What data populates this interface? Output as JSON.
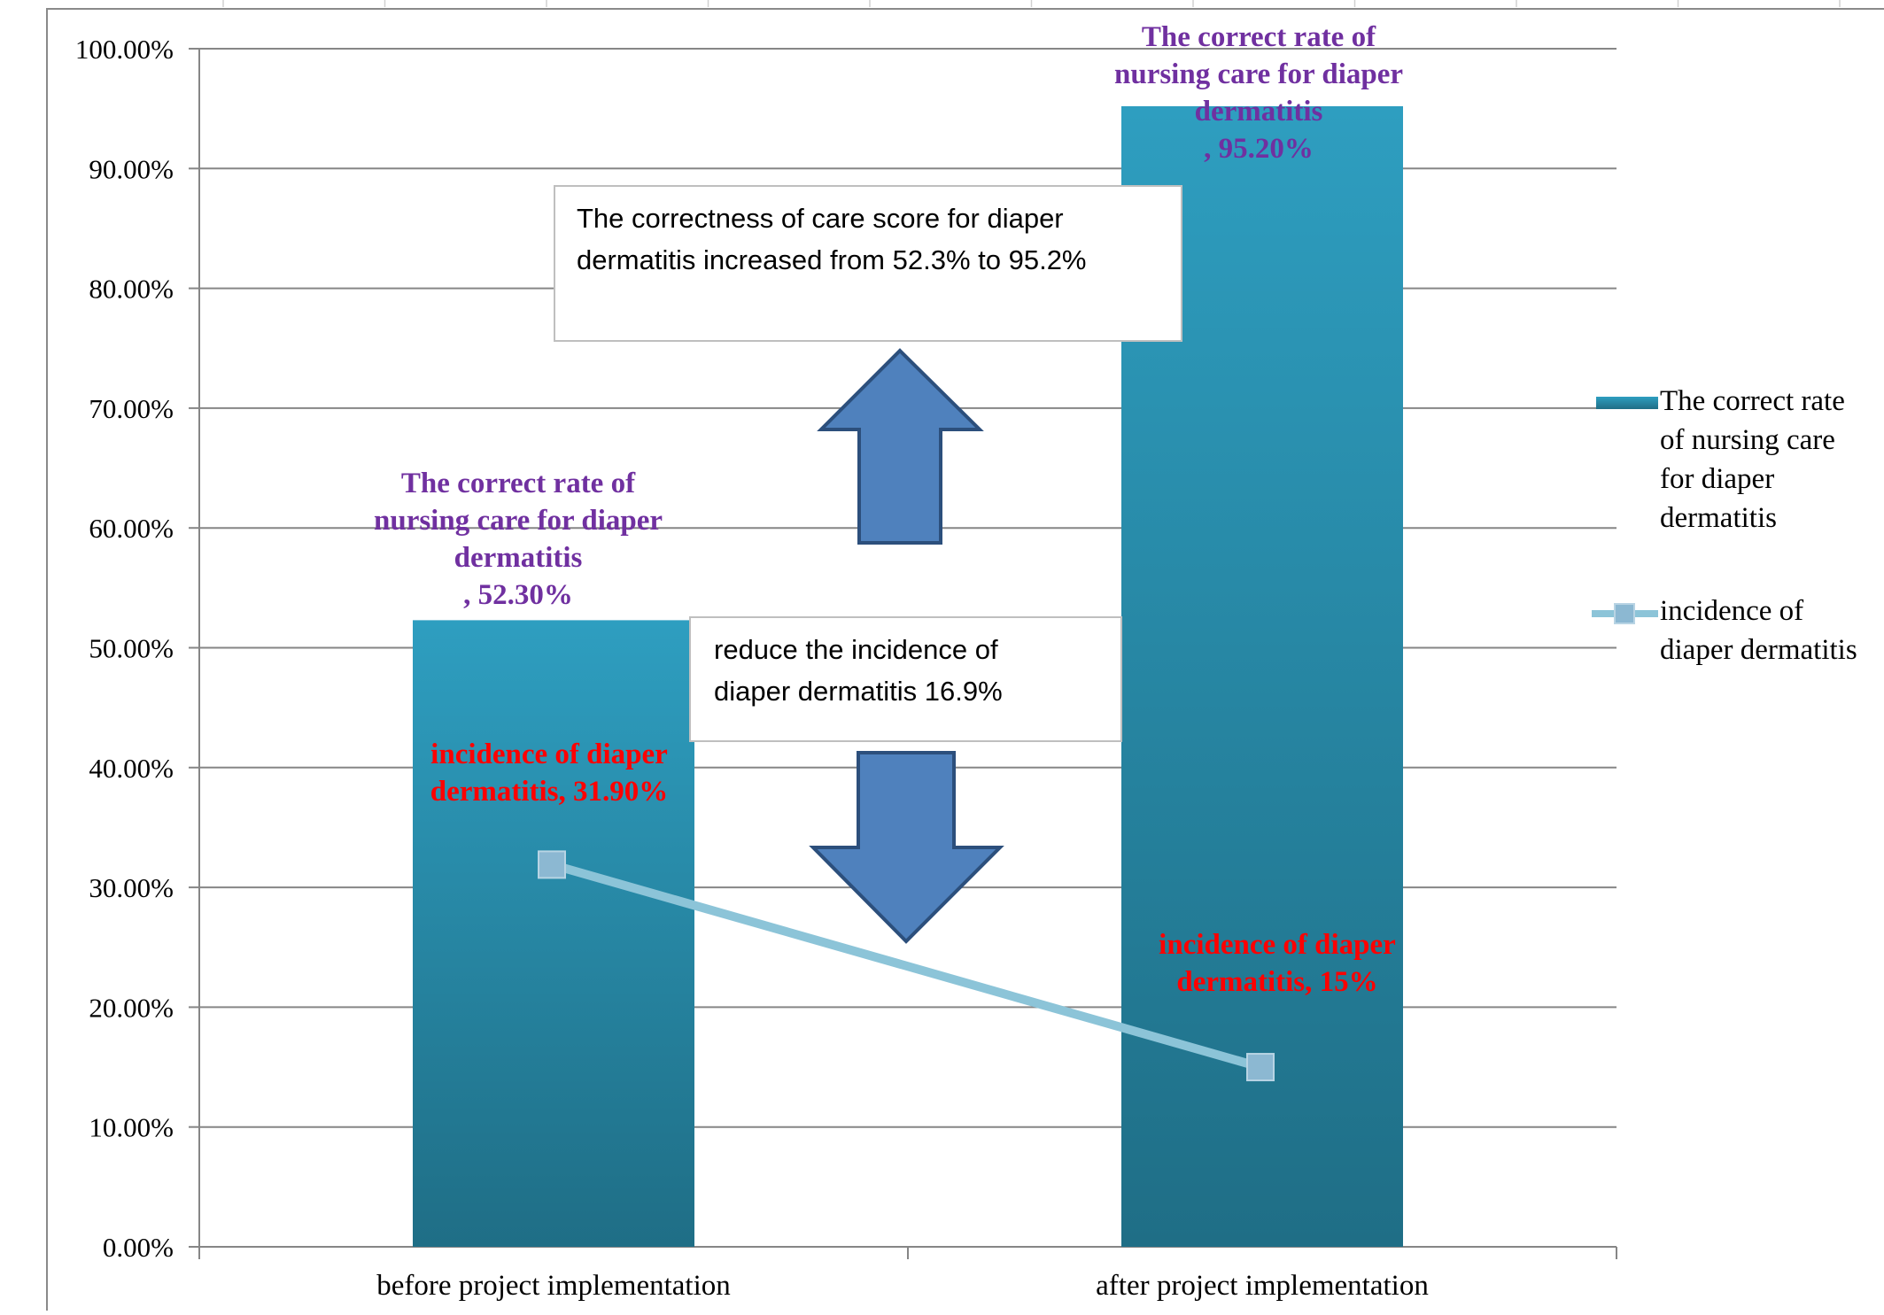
{
  "colors": {
    "bar_top": "#2e9ec0",
    "bar_bottom": "#1f6e86",
    "line": "#8cc4d8",
    "marker": "#8cb8d2",
    "bar_label": "#7030a0",
    "line_label": "#ff0000",
    "arrow_fill": "#4f81bd",
    "arrow_stroke": "#2c4f7c",
    "grid": "#868686"
  },
  "chart_data": {
    "type": "bar",
    "categories": [
      "before project implementation",
      "after project implementation"
    ],
    "ylim": [
      0,
      100
    ],
    "y_ticks": [
      "0.00%",
      "10.00%",
      "20.00%",
      "30.00%",
      "40.00%",
      "50.00%",
      "60.00%",
      "70.00%",
      "80.00%",
      "90.00%",
      "100.00%"
    ],
    "grid": true,
    "legend_position": "right",
    "series": [
      {
        "name": "The correct rate of nursing care for diaper dermatitis",
        "kind": "bar",
        "values": [
          52.3,
          95.2
        ],
        "labels": [
          [
            "The correct rate of",
            "nursing care for diaper",
            "dermatitis",
            ", 52.30%"
          ],
          [
            "The correct rate of",
            "nursing care for diaper",
            "dermatitis",
            ", 95.20%"
          ]
        ],
        "legend_lines": [
          "The correct rate",
          "of nursing care",
          "for diaper",
          "dermatitis"
        ]
      },
      {
        "name": "incidence of diaper dermatitis",
        "kind": "line",
        "values": [
          31.9,
          15
        ],
        "labels": [
          [
            "incidence of diaper",
            "dermatitis, 31.90%"
          ],
          [
            "incidence of diaper",
            "dermatitis, 15%"
          ]
        ],
        "legend_lines": [
          "incidence of",
          "diaper dermatitis"
        ]
      }
    ],
    "annotations": [
      {
        "lines": [
          "The correctness of care score  for diaper",
          "dermatitis increased from 52.3% to 95.2%"
        ],
        "arrow": "up"
      },
      {
        "lines": [
          "reduce the incidence of",
          "diaper dermatitis 16.9%"
        ],
        "arrow": "down"
      }
    ]
  }
}
